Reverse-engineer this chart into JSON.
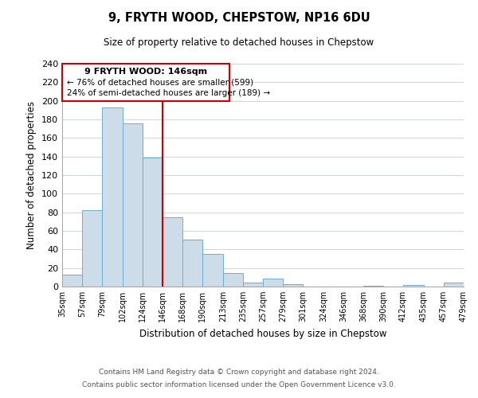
{
  "title": "9, FRYTH WOOD, CHEPSTOW, NP16 6DU",
  "subtitle": "Size of property relative to detached houses in Chepstow",
  "xlabel": "Distribution of detached houses by size in Chepstow",
  "ylabel": "Number of detached properties",
  "bar_color": "#ccdce8",
  "bar_edge_color": "#6baed6",
  "property_line_x": 146,
  "property_line_color": "#cc0000",
  "annotation_box_edge_color": "#cc0000",
  "bin_edges": [
    35,
    57,
    79,
    102,
    124,
    146,
    168,
    190,
    213,
    235,
    257,
    279,
    301,
    324,
    346,
    368,
    390,
    412,
    435,
    457,
    479
  ],
  "counts": [
    13,
    82,
    193,
    176,
    139,
    75,
    51,
    35,
    15,
    4,
    9,
    3,
    0,
    0,
    0,
    1,
    0,
    2,
    0,
    4
  ],
  "tick_labels": [
    "35sqm",
    "57sqm",
    "79sqm",
    "102sqm",
    "124sqm",
    "146sqm",
    "168sqm",
    "190sqm",
    "213sqm",
    "235sqm",
    "257sqm",
    "279sqm",
    "301sqm",
    "324sqm",
    "346sqm",
    "368sqm",
    "390sqm",
    "412sqm",
    "435sqm",
    "457sqm",
    "479sqm"
  ],
  "ylim": [
    0,
    240
  ],
  "yticks": [
    0,
    20,
    40,
    60,
    80,
    100,
    120,
    140,
    160,
    180,
    200,
    220,
    240
  ],
  "annotation_title": "9 FRYTH WOOD: 146sqm",
  "annotation_line1": "← 76% of detached houses are smaller (599)",
  "annotation_line2": "24% of semi-detached houses are larger (189) →",
  "footer_line1": "Contains HM Land Registry data © Crown copyright and database right 2024.",
  "footer_line2": "Contains public sector information licensed under the Open Government Licence v3.0.",
  "background_color": "#ffffff",
  "grid_color": "#d0d8e0"
}
